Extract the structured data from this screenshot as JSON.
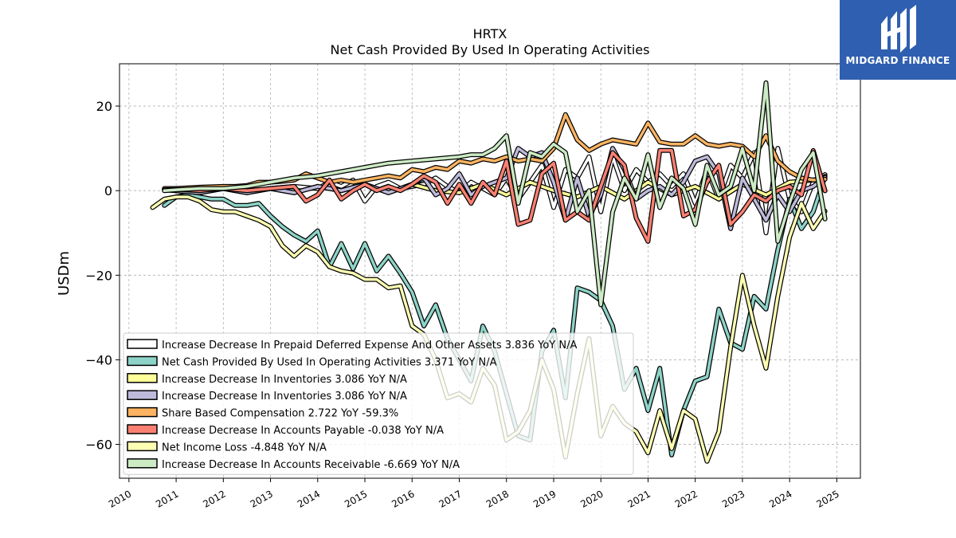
{
  "brand": {
    "name": "MIDGARD FINANCE",
    "color": "#2f5fb0"
  },
  "chart_data": {
    "type": "line",
    "title": "HRTX",
    "subtitle": "Net Cash Provided By Used In Operating Activities",
    "ylabel": "USDm",
    "xlabel": "",
    "xlim": [
      2009.8,
      2025.5
    ],
    "ylim": [
      -68,
      30
    ],
    "yticks": [
      -60,
      -40,
      -20,
      0,
      20
    ],
    "xticks": [
      2010,
      2011,
      2012,
      2013,
      2014,
      2015,
      2016,
      2017,
      2018,
      2019,
      2020,
      2021,
      2022,
      2023,
      2024,
      2025
    ],
    "grid": true,
    "legend_position": "lower-left",
    "series": [
      {
        "name": "Increase Decrease In Prepaid Deferred Expense And Other Assets  3.836 YoY N/A",
        "color": "#ffffff",
        "x": [
          2010.75,
          2011.0,
          2011.5,
          2012.0,
          2012.5,
          2013.0,
          2013.5,
          2014.0,
          2014.25,
          2014.5,
          2014.75,
          2015.0,
          2015.25,
          2015.5,
          2015.75,
          2016.0,
          2016.25,
          2016.5,
          2016.75,
          2017.0,
          2017.25,
          2017.5,
          2017.75,
          2018.0,
          2018.25,
          2018.5,
          2018.75,
          2019.0,
          2019.25,
          2019.5,
          2019.75,
          2020.0,
          2020.25,
          2020.5,
          2020.75,
          2021.0,
          2021.25,
          2021.5,
          2021.75,
          2022.0,
          2022.25,
          2022.5,
          2022.75,
          2023.0,
          2023.25,
          2023.5,
          2023.75,
          2024.0,
          2024.25,
          2024.5,
          2024.75
        ],
        "values": [
          0.3,
          0.2,
          0.3,
          0.5,
          -0.2,
          0.5,
          1.0,
          0.5,
          2.0,
          1.0,
          2.5,
          -2.5,
          1.0,
          2.0,
          0.5,
          1.0,
          1.5,
          3.0,
          1.0,
          -0.5,
          2.0,
          0.5,
          -1.0,
          3.0,
          -2.0,
          2.0,
          6.0,
          -4.0,
          5.0,
          3.0,
          8.0,
          -5.0,
          8.0,
          0.0,
          5.0,
          2.0,
          4.0,
          1.0,
          4.0,
          -3.0,
          5.0,
          -2.0,
          6.0,
          3.0,
          9.0,
          -10.0,
          10.0,
          -2.0,
          -5.0,
          2.0,
          3.8
        ]
      },
      {
        "name": "Net Cash Provided By Used In Operating Activities  3.371 YoY N/A",
        "color": "#8dd3c7",
        "x": [
          2010.75,
          2011.0,
          2011.25,
          2011.5,
          2011.75,
          2012.0,
          2012.25,
          2012.5,
          2012.75,
          2013.0,
          2013.25,
          2013.5,
          2013.75,
          2014.0,
          2014.25,
          2014.5,
          2014.75,
          2015.0,
          2015.25,
          2015.5,
          2015.75,
          2016.0,
          2016.25,
          2016.5,
          2016.75,
          2017.0,
          2017.25,
          2017.5,
          2017.75,
          2018.0,
          2018.25,
          2018.5,
          2018.75,
          2019.0,
          2019.25,
          2019.5,
          2019.75,
          2020.0,
          2020.25,
          2020.5,
          2020.75,
          2021.0,
          2021.25,
          2021.5,
          2021.75,
          2022.0,
          2022.25,
          2022.5,
          2022.75,
          2023.0,
          2023.25,
          2023.5,
          2023.75,
          2024.0,
          2024.25,
          2024.5,
          2024.75
        ],
        "values": [
          -3.5,
          -1.5,
          -1.0,
          -1.5,
          -2.0,
          -2.0,
          -3.5,
          -3.5,
          -3.0,
          -6.0,
          -8.5,
          -10.5,
          -12.0,
          -9.5,
          -18.0,
          -12.5,
          -18.5,
          -12.5,
          -19.0,
          -15.5,
          -19.5,
          -24.0,
          -32.0,
          -27.0,
          -35.0,
          -40.0,
          -45.0,
          -32.0,
          -38.0,
          -48.0,
          -58.0,
          -59.0,
          -38.0,
          -33.0,
          -49.0,
          -23.0,
          -24.0,
          -26.0,
          -32.0,
          -47.0,
          -42.0,
          -52.0,
          -42.0,
          -62.5,
          -52.0,
          -45.0,
          -44.0,
          -28.0,
          -36.0,
          -37.5,
          -25.0,
          -28.0,
          -14.0,
          -2.0,
          -9.0,
          -5.0,
          3.4
        ]
      },
      {
        "name": "Increase Decrease In Inventories  3.086 YoY N/A",
        "color": "#ffff99",
        "x": [
          2010.75,
          2011.0,
          2011.5,
          2012.0,
          2012.5,
          2013.0,
          2013.5,
          2014.0,
          2014.5,
          2015.0,
          2015.5,
          2016.0,
          2016.5,
          2017.0,
          2017.5,
          2018.0,
          2018.5,
          2019.0,
          2019.5,
          2020.0,
          2020.5,
          2021.0,
          2021.5,
          2022.0,
          2022.5,
          2023.0,
          2023.5,
          2024.0,
          2024.5,
          2024.75
        ],
        "values": [
          0.2,
          0.0,
          -0.5,
          0.5,
          -0.5,
          0.5,
          -0.5,
          1.0,
          0.0,
          1.5,
          -0.5,
          1.5,
          0.0,
          -0.5,
          1.5,
          -1.0,
          2.0,
          0.0,
          -1.5,
          1.0,
          -2.0,
          2.0,
          -1.0,
          1.0,
          -2.0,
          1.5,
          -1.0,
          2.0,
          2.5,
          3.1
        ]
      },
      {
        "name": "Increase Decrease In Inventories  3.086 YoY N/A",
        "color": "#bebada",
        "x": [
          2010.75,
          2011.0,
          2011.5,
          2012.0,
          2012.5,
          2013.0,
          2013.5,
          2014.0,
          2014.5,
          2015.0,
          2015.5,
          2016.0,
          2016.25,
          2016.5,
          2016.75,
          2017.0,
          2017.25,
          2017.5,
          2017.75,
          2018.0,
          2018.25,
          2018.5,
          2018.75,
          2019.0,
          2019.25,
          2019.5,
          2019.75,
          2020.0,
          2020.25,
          2020.5,
          2020.75,
          2021.0,
          2021.25,
          2021.5,
          2021.75,
          2022.0,
          2022.25,
          2022.5,
          2022.75,
          2023.0,
          2023.25,
          2023.5,
          2023.75,
          2024.0,
          2024.25,
          2024.5,
          2024.75
        ],
        "values": [
          0.2,
          0.0,
          -0.5,
          0.5,
          -0.5,
          0.5,
          -0.5,
          1.0,
          0.0,
          1.5,
          -0.5,
          1.5,
          3.0,
          -1.0,
          0.5,
          4.0,
          -1.0,
          1.0,
          2.0,
          3.0,
          10.0,
          8.0,
          9.0,
          2.0,
          -7.0,
          3.0,
          -6.0,
          -1.0,
          10.0,
          5.0,
          -2.0,
          0.0,
          1.0,
          -1.0,
          2.0,
          7.0,
          8.0,
          4.0,
          -9.0,
          3.0,
          -2.0,
          -7.0,
          -1.0,
          -5.0,
          0.0,
          1.0,
          3.1
        ]
      },
      {
        "name": "Share Based Compensation  2.722 YoY -59.3%",
        "color": "#fdb462",
        "x": [
          2010.75,
          2011.0,
          2011.5,
          2012.0,
          2012.25,
          2012.5,
          2012.75,
          2013.0,
          2013.25,
          2013.5,
          2013.75,
          2014.0,
          2014.25,
          2014.5,
          2014.75,
          2015.0,
          2015.25,
          2015.5,
          2015.75,
          2016.0,
          2016.25,
          2016.5,
          2016.75,
          2017.0,
          2017.25,
          2017.5,
          2017.75,
          2018.0,
          2018.25,
          2018.5,
          2018.75,
          2019.0,
          2019.25,
          2019.5,
          2019.75,
          2020.0,
          2020.25,
          2020.5,
          2020.75,
          2021.0,
          2021.25,
          2021.5,
          2021.75,
          2022.0,
          2022.25,
          2022.5,
          2022.75,
          2023.0,
          2023.25,
          2023.5,
          2023.75,
          2024.0,
          2024.25,
          2024.5,
          2024.75
        ],
        "values": [
          0.5,
          0.5,
          0.8,
          1.0,
          1.0,
          1.2,
          2.0,
          2.0,
          2.2,
          2.5,
          4.0,
          3.0,
          2.0,
          2.5,
          2.0,
          2.5,
          3.0,
          3.5,
          3.0,
          5.0,
          4.5,
          5.5,
          5.0,
          7.0,
          6.5,
          7.5,
          7.0,
          8.0,
          7.0,
          7.5,
          7.0,
          10.0,
          18.0,
          12.0,
          9.5,
          11.0,
          12.0,
          11.5,
          11.0,
          16.0,
          11.5,
          11.0,
          11.0,
          13.0,
          11.0,
          10.5,
          11.0,
          10.5,
          8.0,
          13.0,
          7.0,
          4.5,
          3.0,
          2.5,
          2.7
        ]
      },
      {
        "name": "Increase Decrease In Accounts Payable  -0.038 YoY N/A",
        "color": "#fb8072",
        "x": [
          2010.75,
          2011.0,
          2011.5,
          2012.0,
          2012.5,
          2013.0,
          2013.5,
          2013.75,
          2014.0,
          2014.25,
          2014.5,
          2014.75,
          2015.0,
          2015.25,
          2015.5,
          2015.75,
          2016.0,
          2016.25,
          2016.5,
          2016.75,
          2017.0,
          2017.25,
          2017.5,
          2017.75,
          2018.0,
          2018.25,
          2018.5,
          2018.75,
          2019.0,
          2019.25,
          2019.5,
          2019.75,
          2020.0,
          2020.25,
          2020.5,
          2020.75,
          2021.0,
          2021.25,
          2021.5,
          2021.75,
          2022.0,
          2022.25,
          2022.5,
          2022.75,
          2023.0,
          2023.25,
          2023.5,
          2023.75,
          2024.0,
          2024.25,
          2024.5,
          2024.75
        ],
        "values": [
          0.2,
          0.3,
          0.0,
          0.5,
          0.0,
          0.5,
          1.0,
          -2.5,
          -1.0,
          2.5,
          -2.0,
          0.0,
          1.5,
          0.0,
          1.0,
          0.0,
          1.5,
          3.5,
          2.0,
          -3.0,
          1.5,
          -3.0,
          2.0,
          -1.0,
          7.0,
          -8.0,
          -7.0,
          4.0,
          6.5,
          -7.0,
          -5.0,
          -7.0,
          1.0,
          9.0,
          6.0,
          -6.5,
          -12.0,
          9.5,
          9.5,
          -6.0,
          -4.5,
          2.0,
          6.0,
          -8.0,
          -5.0,
          -1.0,
          -2.5,
          0.0,
          1.0,
          -1.0,
          9.5,
          -0.04
        ]
      },
      {
        "name": "Net Income Loss  -4.848 YoY N/A",
        "color": "#ffffb3",
        "x": [
          2010.5,
          2010.75,
          2011.0,
          2011.25,
          2011.5,
          2011.75,
          2012.0,
          2012.25,
          2012.5,
          2012.75,
          2013.0,
          2013.25,
          2013.5,
          2013.75,
          2014.0,
          2014.25,
          2014.5,
          2014.75,
          2015.0,
          2015.25,
          2015.5,
          2015.75,
          2016.0,
          2016.25,
          2016.5,
          2016.75,
          2017.0,
          2017.25,
          2017.5,
          2017.75,
          2018.0,
          2018.25,
          2018.5,
          2018.75,
          2019.0,
          2019.25,
          2019.5,
          2019.75,
          2020.0,
          2020.25,
          2020.5,
          2020.75,
          2021.0,
          2021.25,
          2021.5,
          2021.75,
          2022.0,
          2022.25,
          2022.5,
          2022.75,
          2023.0,
          2023.25,
          2023.5,
          2023.75,
          2024.0,
          2024.25,
          2024.5,
          2024.75
        ],
        "values": [
          -4.0,
          -2.0,
          -1.5,
          -1.5,
          -2.5,
          -4.5,
          -5.0,
          -5.0,
          -6.0,
          -7.0,
          -8.5,
          -13.0,
          -15.5,
          -13.0,
          -14.5,
          -18.0,
          -19.0,
          -19.5,
          -21.0,
          -21.0,
          -23.0,
          -22.5,
          -32.0,
          -34.0,
          -40.0,
          -49.0,
          -48.0,
          -50.0,
          -42.0,
          -46.0,
          -59.0,
          -57.0,
          -52.0,
          -40.0,
          -47.0,
          -63.0,
          -48.0,
          -35.0,
          -58.0,
          -51.0,
          -55.0,
          -57.0,
          -62.0,
          -52.0,
          -61.0,
          -52.0,
          -54.0,
          -64.0,
          -57.0,
          -37.0,
          -20.0,
          -32.0,
          -42.0,
          -25.0,
          -11.0,
          -3.0,
          -9.0,
          -4.85
        ]
      },
      {
        "name": "Increase Decrease In Accounts Receivable  -6.669 YoY N/A",
        "color": "#ccebc5",
        "x": [
          2010.75,
          2011.0,
          2011.5,
          2012.0,
          2012.5,
          2013.0,
          2013.5,
          2014.0,
          2014.5,
          2015.0,
          2015.5,
          2016.0,
          2016.5,
          2017.0,
          2017.25,
          2017.5,
          2017.75,
          2018.0,
          2018.25,
          2018.5,
          2018.75,
          2019.0,
          2019.25,
          2019.5,
          2019.75,
          2020.0,
          2020.25,
          2020.5,
          2020.75,
          2021.0,
          2021.25,
          2021.5,
          2021.75,
          2022.0,
          2022.25,
          2022.5,
          2022.75,
          2023.0,
          2023.25,
          2023.5,
          2023.75,
          2024.0,
          2024.25,
          2024.5,
          2024.75
        ],
        "values": [
          0.0,
          0.2,
          0.5,
          0.5,
          1.0,
          2.0,
          3.0,
          3.5,
          4.5,
          5.5,
          6.5,
          7.0,
          7.5,
          8.0,
          8.5,
          8.5,
          10.0,
          13.0,
          -3.0,
          9.0,
          8.0,
          11.0,
          9.0,
          -5.0,
          0.0,
          -27.0,
          -5.0,
          3.0,
          -2.0,
          8.5,
          -4.0,
          3.0,
          0.5,
          -8.0,
          6.0,
          -1.0,
          1.0,
          10.0,
          0.0,
          25.5,
          -12.0,
          -3.0,
          5.0,
          9.0,
          -6.7
        ]
      }
    ]
  }
}
